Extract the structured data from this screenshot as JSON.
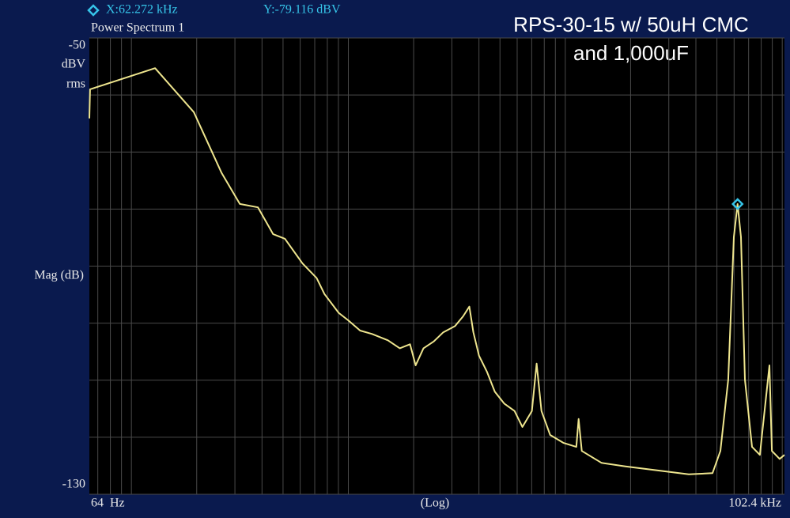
{
  "chart_data": {
    "type": "line",
    "title": "Power Spectrum 1",
    "annotation": [
      "RPS-30-15 w/ 50uH CMC",
      "and 1,000uF"
    ],
    "cursor": {
      "x": 62272,
      "y": -79.116,
      "x_label": "X:62.272 kHz",
      "y_label": "Y:-79.116 dBV"
    },
    "y_label": "Mag (dB)",
    "y_unit": [
      "dBV",
      "rms"
    ],
    "x_label": "(Log)",
    "x_log": true,
    "xlim": [
      64,
      102400
    ],
    "ylim": [
      -130,
      -50
    ],
    "xticks": [
      {
        "value": 64,
        "label": "64  Hz"
      },
      {
        "value": 102400,
        "label": "102.4 kHz"
      }
    ],
    "yticks": [
      -50,
      -130
    ],
    "grid": true,
    "xgrid": [
      70,
      80,
      90,
      100,
      200,
      300,
      400,
      500,
      600,
      700,
      800,
      900,
      1000,
      2000,
      3000,
      4000,
      5000,
      6000,
      7000,
      8000,
      9000,
      10000,
      20000,
      30000,
      40000,
      50000,
      60000,
      70000,
      80000,
      90000,
      100000
    ],
    "ygrid": [
      -50,
      -60,
      -70,
      -80,
      -90,
      -100,
      -110,
      -120,
      -130
    ],
    "series": [
      {
        "color": "#eee58e",
        "x": [
          64,
          64.5,
          128.6,
          194,
          260,
          316,
          383,
          450,
          510,
          614,
          714,
          776,
          903,
          998,
          1133,
          1286,
          1521,
          1727,
          1924,
          2042,
          2220,
          2478,
          2737,
          3106,
          3380,
          3613,
          3770,
          4000,
          4350,
          4731,
          5230,
          5837,
          6342,
          7016,
          7380,
          7765,
          8515,
          9824,
          11245,
          11520,
          11914,
          14700,
          18940,
          26500,
          37080,
          47700,
          51900,
          56400,
          59850,
          62272,
          64560,
          67300,
          72600,
          78900,
          87300,
          89600,
          97300,
          102400
        ],
        "values": [
          -64.1,
          -59.0,
          -55.3,
          -63.0,
          -73.6,
          -79.1,
          -79.7,
          -84.4,
          -85.2,
          -89.5,
          -92.1,
          -94.9,
          -98.2,
          -99.5,
          -101.3,
          -101.9,
          -103.0,
          -104.4,
          -103.7,
          -107.4,
          -104.4,
          -103.2,
          -101.6,
          -100.5,
          -98.8,
          -97.1,
          -101.6,
          -105.7,
          -108.5,
          -112.0,
          -114.1,
          -115.4,
          -118.2,
          -115.4,
          -107.1,
          -115.4,
          -119.6,
          -121.0,
          -121.7,
          -116.8,
          -122.4,
          -124.5,
          -125.1,
          -125.8,
          -126.5,
          -126.3,
          -122.4,
          -109.9,
          -84.9,
          -79.116,
          -84.9,
          -109.9,
          -121.7,
          -123.1,
          -107.4,
          -122.4,
          -123.8,
          -123.1
        ]
      }
    ]
  }
}
